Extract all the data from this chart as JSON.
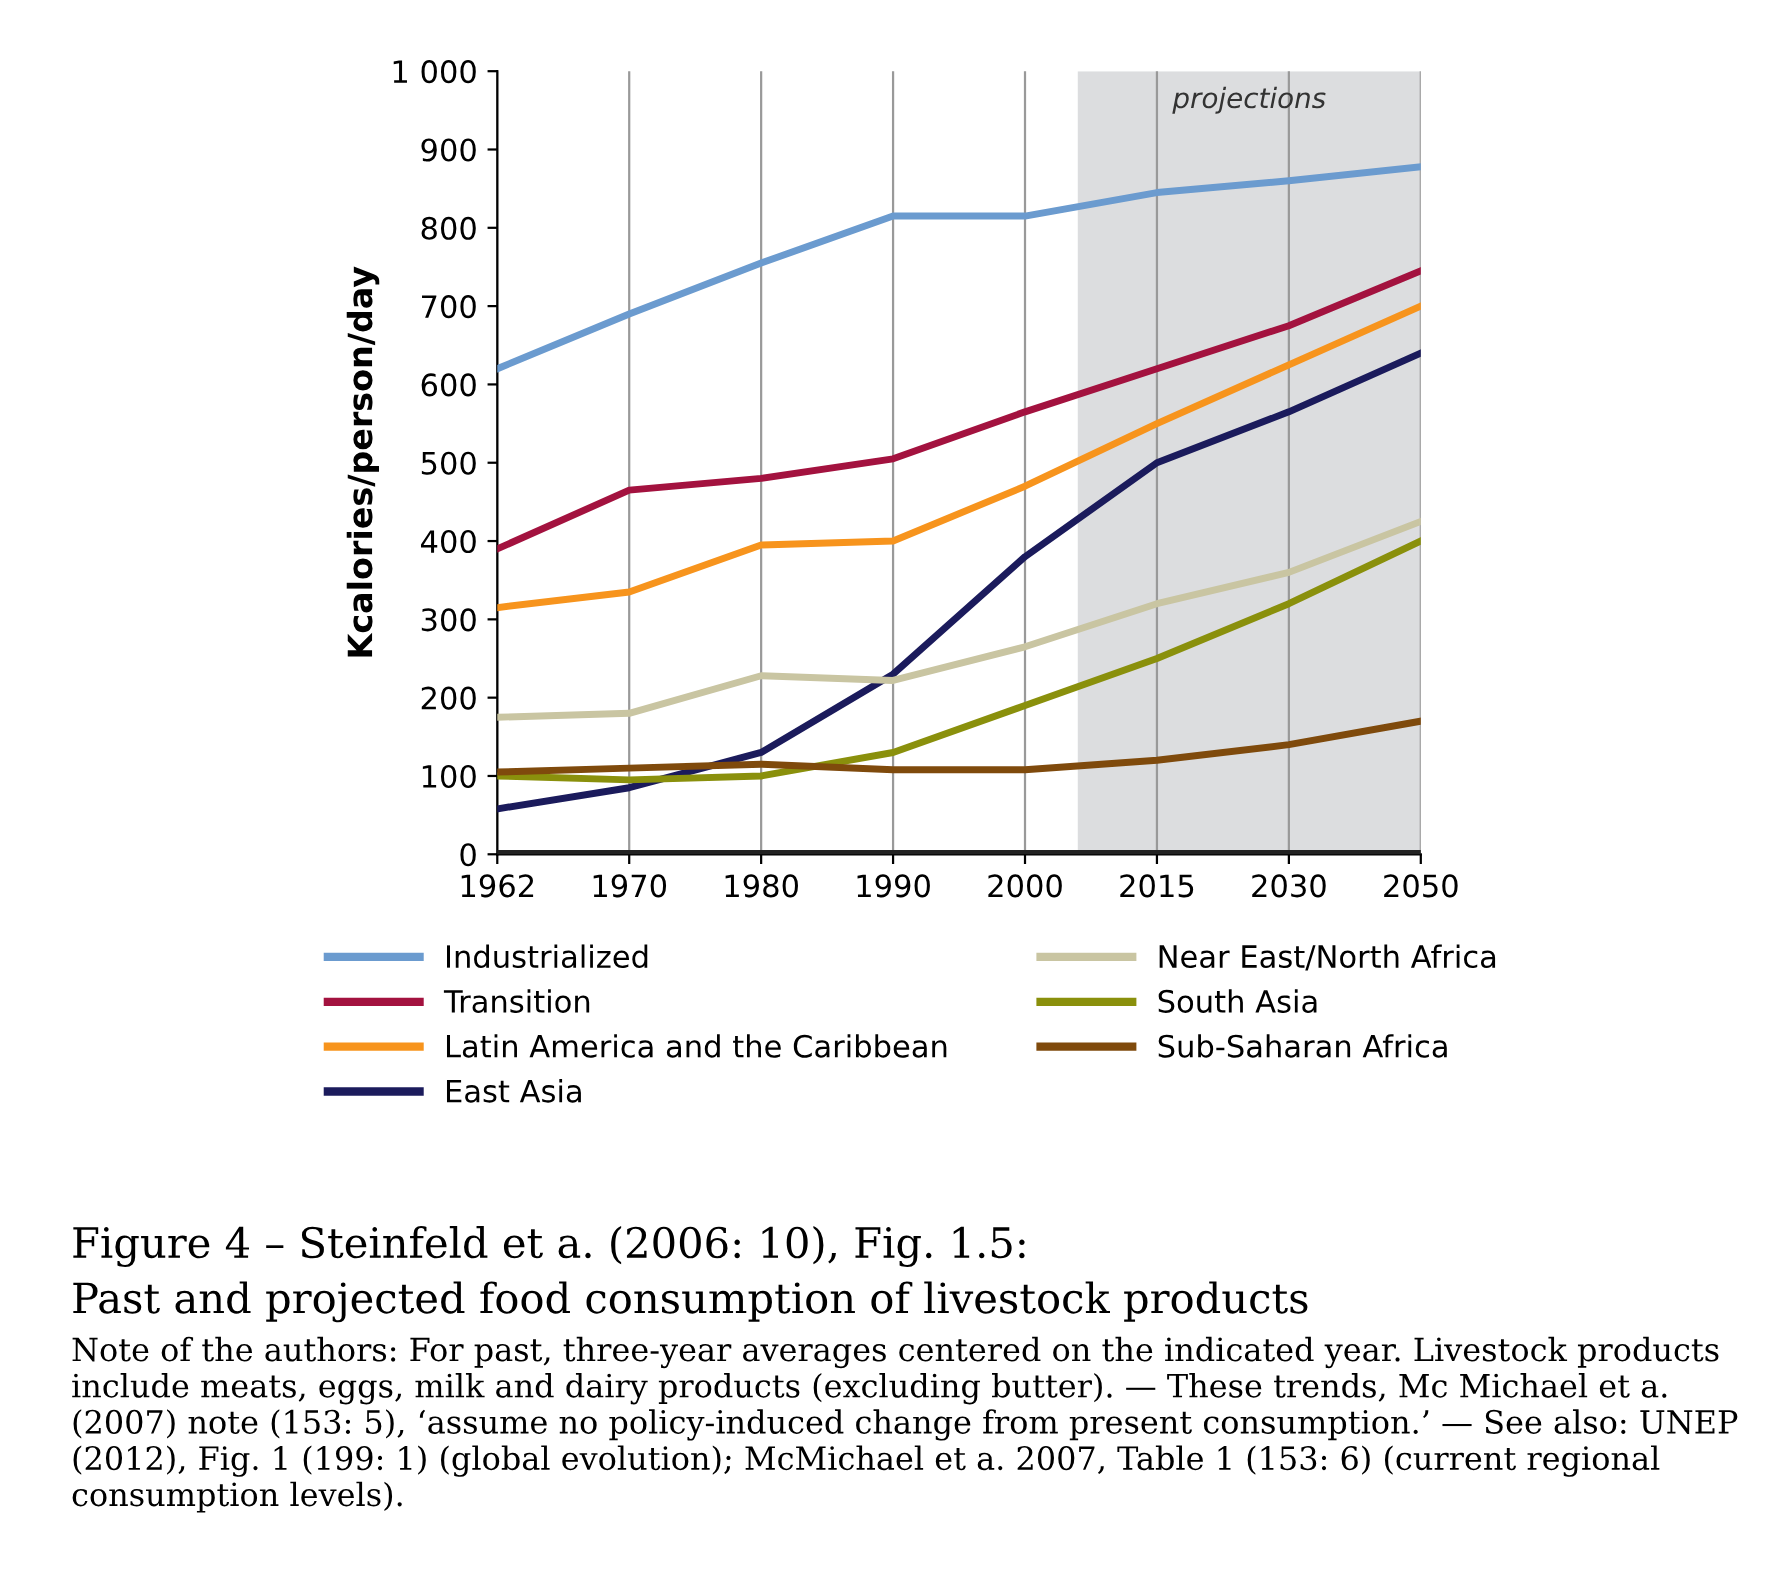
{
  "chart_data": {
    "type": "line",
    "categories": [
      "1962",
      "1970",
      "1980",
      "1990",
      "2000",
      "2015",
      "2030",
      "2050"
    ],
    "series": [
      {
        "name": "Industrialized",
        "color": "#6b9bcf",
        "values": [
          620,
          690,
          755,
          815,
          815,
          845,
          860,
          878
        ]
      },
      {
        "name": "Transition",
        "color": "#a3123f",
        "values": [
          390,
          465,
          480,
          505,
          565,
          620,
          675,
          745
        ]
      },
      {
        "name": "Latin America and the Caribbean",
        "color": "#f7941d",
        "values": [
          315,
          335,
          395,
          400,
          470,
          550,
          625,
          700
        ]
      },
      {
        "name": "East Asia",
        "color": "#1b1b5c",
        "values": [
          58,
          85,
          130,
          230,
          380,
          500,
          565,
          640
        ]
      },
      {
        "name": "Near East/North Africa",
        "color": "#c9c5a2",
        "values": [
          175,
          180,
          228,
          222,
          265,
          320,
          360,
          425
        ]
      },
      {
        "name": "South Asia",
        "color": "#8a900c",
        "values": [
          100,
          95,
          100,
          130,
          190,
          250,
          320,
          400
        ]
      },
      {
        "name": "Sub-Saharan Africa",
        "color": "#7f4a0c",
        "values": [
          105,
          110,
          115,
          108,
          108,
          120,
          140,
          170
        ]
      }
    ],
    "ylabel": "Kcalories/person/day",
    "ylim": [
      0,
      1000
    ],
    "yticks": [
      0,
      100,
      200,
      300,
      400,
      500,
      600,
      700,
      800,
      900,
      {
        "value": 1000,
        "label": "1 000"
      }
    ],
    "grid": "x",
    "legend": "bottom",
    "marker": "none",
    "line_style": "solid",
    "annotations": [
      "projections",
      "Figure 4 – Steinfeld et a. (2006: 10), Fig. 1.5:",
      "Past and projected food consumption of livestock products",
      "Note of the authors: For past, three-year averages centered on the indicated year. Livestock products include meats, eggs, milk and dairy products (excluding butter). — These trends, Mc Michael et a. (2007) note (153: 5), ‘assume no policy-induced change from present consumption.’ — See also: UNEP (2012), Fig. 1 (199: 1) (global evolution); McMichael et a. 2007, Table 1 (153: 6) (current regional consumption levels)."
    ]
  }
}
